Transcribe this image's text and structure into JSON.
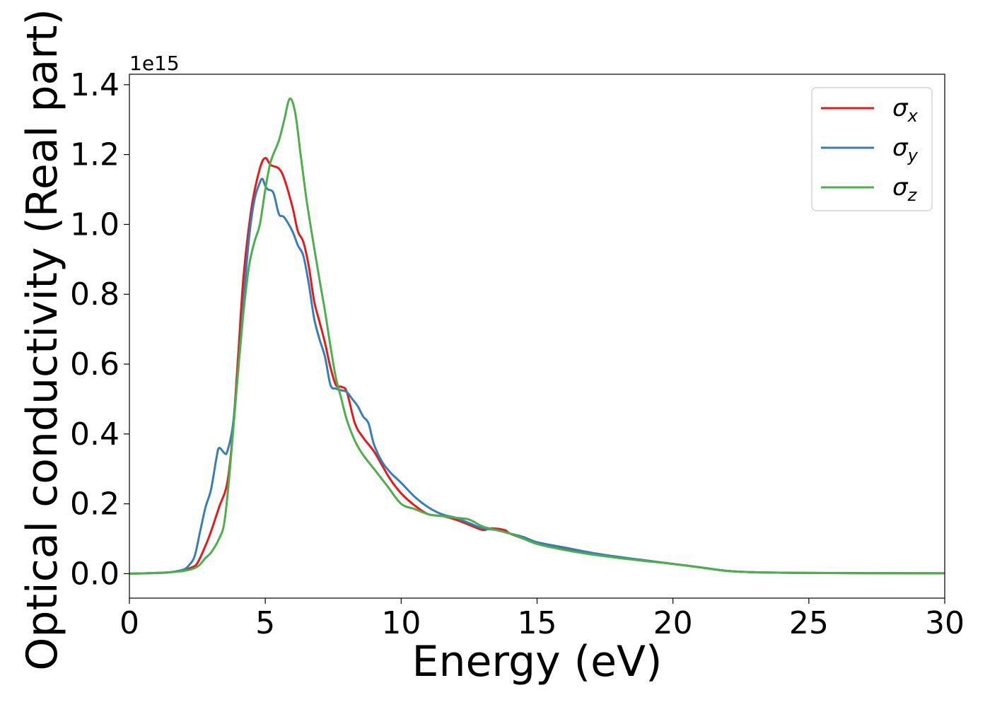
{
  "chart_data": {
    "type": "line",
    "xlabel": "Energy (eV)",
    "ylabel": "Optical conductivity (Real part)",
    "y_offset_text": "1e15",
    "xlim": [
      0,
      30
    ],
    "ylim": [
      -0.07,
      1.43
    ],
    "x_ticks": [
      0,
      5,
      10,
      15,
      20,
      25,
      30
    ],
    "y_ticks": [
      0.0,
      0.2,
      0.4,
      0.6,
      0.8,
      1.0,
      1.2,
      1.4
    ],
    "x_tick_labels": [
      "0",
      "5",
      "10",
      "15",
      "20",
      "25",
      "30"
    ],
    "y_tick_labels": [
      "0.0",
      "0.2",
      "0.4",
      "0.6",
      "0.8",
      "1.0",
      "1.2",
      "1.4"
    ],
    "grid": false,
    "legend_position": "top-right",
    "series": [
      {
        "name": "σx",
        "symbol": "σ",
        "subscript": "x",
        "color": "#e41a1c",
        "points": [
          [
            0,
            0
          ],
          [
            1,
            0.002
          ],
          [
            1.5,
            0.004
          ],
          [
            2,
            0.01
          ],
          [
            2.3,
            0.018
          ],
          [
            2.5,
            0.03
          ],
          [
            2.8,
            0.08
          ],
          [
            3,
            0.12
          ],
          [
            3.3,
            0.19
          ],
          [
            3.6,
            0.26
          ],
          [
            3.8,
            0.4
          ],
          [
            4,
            0.62
          ],
          [
            4.2,
            0.85
          ],
          [
            4.5,
            1.05
          ],
          [
            4.8,
            1.16
          ],
          [
            5,
            1.19
          ],
          [
            5.2,
            1.17
          ],
          [
            5.5,
            1.16
          ],
          [
            5.7,
            1.13
          ],
          [
            6,
            1.05
          ],
          [
            6.2,
            0.98
          ],
          [
            6.4,
            0.95
          ],
          [
            6.6,
            0.88
          ],
          [
            6.8,
            0.78
          ],
          [
            7,
            0.72
          ],
          [
            7.2,
            0.66
          ],
          [
            7.4,
            0.59
          ],
          [
            7.6,
            0.54
          ],
          [
            7.8,
            0.535
          ],
          [
            8,
            0.52
          ],
          [
            8.3,
            0.43
          ],
          [
            8.6,
            0.39
          ],
          [
            9,
            0.35
          ],
          [
            9.3,
            0.31
          ],
          [
            9.6,
            0.27
          ],
          [
            10,
            0.23
          ],
          [
            10.5,
            0.195
          ],
          [
            11,
            0.17
          ],
          [
            11.5,
            0.165
          ],
          [
            12,
            0.155
          ],
          [
            12.5,
            0.14
          ],
          [
            13,
            0.125
          ],
          [
            13.3,
            0.13
          ],
          [
            13.8,
            0.125
          ],
          [
            14,
            0.115
          ],
          [
            14.5,
            0.1
          ],
          [
            15,
            0.087
          ],
          [
            16,
            0.072
          ],
          [
            17,
            0.058
          ],
          [
            18,
            0.048
          ],
          [
            19,
            0.037
          ],
          [
            20,
            0.028
          ],
          [
            21,
            0.018
          ],
          [
            22,
            0.008
          ],
          [
            23,
            0.004
          ],
          [
            25,
            0.002
          ],
          [
            30,
            0.001
          ]
        ]
      },
      {
        "name": "σy",
        "symbol": "σ",
        "subscript": "y",
        "color": "#377eb8",
        "points": [
          [
            0,
            0
          ],
          [
            1,
            0.002
          ],
          [
            1.5,
            0.004
          ],
          [
            2,
            0.012
          ],
          [
            2.2,
            0.025
          ],
          [
            2.4,
            0.05
          ],
          [
            2.6,
            0.12
          ],
          [
            2.8,
            0.19
          ],
          [
            3,
            0.24
          ],
          [
            3.2,
            0.33
          ],
          [
            3.3,
            0.36
          ],
          [
            3.5,
            0.345
          ],
          [
            3.6,
            0.35
          ],
          [
            3.8,
            0.42
          ],
          [
            4,
            0.58
          ],
          [
            4.2,
            0.78
          ],
          [
            4.4,
            0.96
          ],
          [
            4.6,
            1.07
          ],
          [
            4.8,
            1.12
          ],
          [
            4.9,
            1.13
          ],
          [
            5,
            1.11
          ],
          [
            5.1,
            1.1
          ],
          [
            5.3,
            1.09
          ],
          [
            5.5,
            1.03
          ],
          [
            5.7,
            1.02
          ],
          [
            6,
            0.98
          ],
          [
            6.2,
            0.94
          ],
          [
            6.4,
            0.91
          ],
          [
            6.6,
            0.83
          ],
          [
            6.8,
            0.73
          ],
          [
            7,
            0.67
          ],
          [
            7.2,
            0.62
          ],
          [
            7.4,
            0.54
          ],
          [
            7.6,
            0.53
          ],
          [
            7.8,
            0.525
          ],
          [
            8,
            0.52
          ],
          [
            8.2,
            0.5
          ],
          [
            8.4,
            0.48
          ],
          [
            8.6,
            0.45
          ],
          [
            8.8,
            0.43
          ],
          [
            9,
            0.37
          ],
          [
            9.3,
            0.32
          ],
          [
            9.6,
            0.29
          ],
          [
            10,
            0.26
          ],
          [
            10.5,
            0.22
          ],
          [
            11,
            0.19
          ],
          [
            11.5,
            0.17
          ],
          [
            12,
            0.16
          ],
          [
            12.5,
            0.145
          ],
          [
            13,
            0.13
          ],
          [
            13.5,
            0.125
          ],
          [
            14,
            0.115
          ],
          [
            14.5,
            0.105
          ],
          [
            15,
            0.09
          ],
          [
            16,
            0.075
          ],
          [
            17,
            0.06
          ],
          [
            18,
            0.048
          ],
          [
            19,
            0.038
          ],
          [
            20,
            0.028
          ],
          [
            21,
            0.018
          ],
          [
            22,
            0.008
          ],
          [
            23,
            0.004
          ],
          [
            25,
            0.002
          ],
          [
            30,
            0.001
          ]
        ]
      },
      {
        "name": "σz",
        "symbol": "σ",
        "subscript": "z",
        "color": "#4daf4a",
        "points": [
          [
            0,
            0
          ],
          [
            1,
            0.002
          ],
          [
            2,
            0.008
          ],
          [
            2.5,
            0.02
          ],
          [
            2.8,
            0.045
          ],
          [
            3,
            0.06
          ],
          [
            3.3,
            0.1
          ],
          [
            3.5,
            0.15
          ],
          [
            3.7,
            0.3
          ],
          [
            4,
            0.58
          ],
          [
            4.2,
            0.75
          ],
          [
            4.4,
            0.88
          ],
          [
            4.6,
            0.95
          ],
          [
            4.8,
            1.0
          ],
          [
            5,
            1.1
          ],
          [
            5.2,
            1.18
          ],
          [
            5.5,
            1.24
          ],
          [
            5.7,
            1.3
          ],
          [
            5.9,
            1.36
          ],
          [
            6.1,
            1.32
          ],
          [
            6.3,
            1.2
          ],
          [
            6.5,
            1.08
          ],
          [
            6.7,
            0.98
          ],
          [
            7,
            0.84
          ],
          [
            7.2,
            0.75
          ],
          [
            7.4,
            0.65
          ],
          [
            7.6,
            0.56
          ],
          [
            7.8,
            0.5
          ],
          [
            8,
            0.44
          ],
          [
            8.3,
            0.38
          ],
          [
            8.6,
            0.34
          ],
          [
            9,
            0.3
          ],
          [
            9.5,
            0.25
          ],
          [
            10,
            0.2
          ],
          [
            10.5,
            0.185
          ],
          [
            11,
            0.17
          ],
          [
            11.5,
            0.165
          ],
          [
            12,
            0.16
          ],
          [
            12.5,
            0.155
          ],
          [
            13,
            0.135
          ],
          [
            13.5,
            0.125
          ],
          [
            14,
            0.115
          ],
          [
            14.5,
            0.1
          ],
          [
            15,
            0.085
          ],
          [
            16,
            0.068
          ],
          [
            17,
            0.055
          ],
          [
            18,
            0.045
          ],
          [
            19,
            0.036
          ],
          [
            20,
            0.028
          ],
          [
            21,
            0.018
          ],
          [
            22,
            0.008
          ],
          [
            23,
            0.004
          ],
          [
            25,
            0.002
          ],
          [
            30,
            0.001
          ]
        ]
      }
    ]
  }
}
